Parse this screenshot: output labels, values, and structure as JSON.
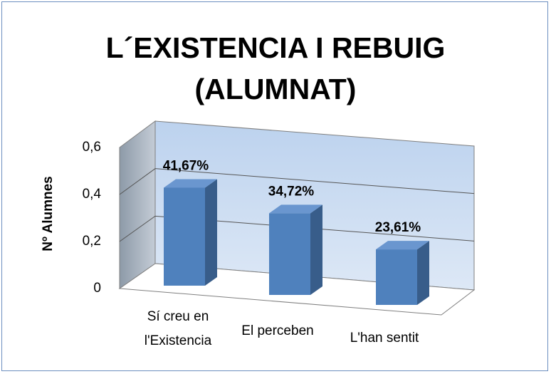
{
  "chart_data": {
    "type": "bar3d",
    "title": "L´EXISTENCIA I REBUIG (ALUMNAT)",
    "y_label": "Nº Alumnes",
    "categories": [
      "Sí creu en l'Existencia",
      "El perceben",
      "L'han sentit"
    ],
    "values": [
      0.4167,
      0.3472,
      0.2361
    ],
    "value_labels": [
      "41,67%",
      "34,72%",
      "23,61%"
    ],
    "color": "#4f81bd",
    "ylim": [
      0,
      0.6
    ],
    "yticks": [
      0,
      {
        "value": 0.2,
        "label": "0,2"
      },
      {
        "value": 0.4,
        "label": "0,4"
      },
      {
        "value": 0.6,
        "label": "0,6"
      }
    ],
    "grid": true
  }
}
